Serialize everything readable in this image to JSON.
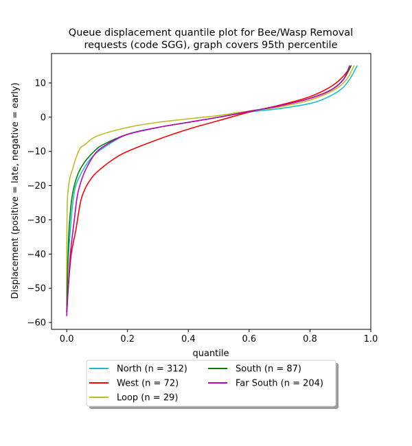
{
  "chart_data": {
    "type": "line",
    "title": "Queue displacement quantile plot for Bee/Wasp Removal\nrequests (code SGG), graph covers 95th percentile",
    "xlabel": "quantile",
    "ylabel": "Displacement (positive = late, negative = early)",
    "xlim": [
      -0.05,
      1.0
    ],
    "ylim": [
      -62,
      18.6
    ],
    "xticks": [
      0.0,
      0.2,
      0.4,
      0.6,
      0.8,
      1.0
    ],
    "xtick_labels": [
      "0.0",
      "0.2",
      "0.4",
      "0.6",
      "0.8",
      "1.0"
    ],
    "yticks": [
      -60,
      -50,
      -40,
      -30,
      -20,
      -10,
      0,
      10
    ],
    "ytick_labels": [
      "−60",
      "−50",
      "−40",
      "−30",
      "−20",
      "−10",
      "0",
      "10"
    ],
    "grid": false,
    "legend_position": "below plot, centered, two columns, with shadow",
    "series": [
      {
        "name": "North (n = 312)",
        "color": "#17becf",
        "points": [
          [
            0.0,
            -57
          ],
          [
            0.003,
            -45
          ],
          [
            0.01,
            -35
          ],
          [
            0.02,
            -25
          ],
          [
            0.03,
            -20
          ],
          [
            0.05,
            -16
          ],
          [
            0.08,
            -12
          ],
          [
            0.12,
            -9
          ],
          [
            0.2,
            -5
          ],
          [
            0.3,
            -3
          ],
          [
            0.4,
            -1.5
          ],
          [
            0.5,
            0
          ],
          [
            0.6,
            1.5
          ],
          [
            0.7,
            2.5
          ],
          [
            0.8,
            4
          ],
          [
            0.85,
            5.5
          ],
          [
            0.9,
            8
          ],
          [
            0.93,
            11
          ],
          [
            0.955,
            15
          ]
        ]
      },
      {
        "name": "West (n = 72)",
        "color": "#ff0000",
        "points": [
          [
            0.0,
            -57
          ],
          [
            0.005,
            -50
          ],
          [
            0.015,
            -40
          ],
          [
            0.03,
            -33
          ],
          [
            0.045,
            -25
          ],
          [
            0.06,
            -21
          ],
          [
            0.08,
            -18
          ],
          [
            0.1,
            -16
          ],
          [
            0.15,
            -12.5
          ],
          [
            0.2,
            -10
          ],
          [
            0.3,
            -6.5
          ],
          [
            0.4,
            -3.5
          ],
          [
            0.5,
            -1
          ],
          [
            0.6,
            1.5
          ],
          [
            0.7,
            3.5
          ],
          [
            0.8,
            6
          ],
          [
            0.87,
            9
          ],
          [
            0.91,
            12
          ],
          [
            0.935,
            15
          ]
        ]
      },
      {
        "name": "Loop (n = 29)",
        "color": "#bcbd22",
        "points": [
          [
            0.0,
            -55
          ],
          [
            0.0,
            -40
          ],
          [
            0.001,
            -30
          ],
          [
            0.003,
            -23
          ],
          [
            0.01,
            -18
          ],
          [
            0.02,
            -15
          ],
          [
            0.03,
            -12
          ],
          [
            0.045,
            -9
          ],
          [
            0.06,
            -8
          ],
          [
            0.1,
            -5.5
          ],
          [
            0.2,
            -3
          ],
          [
            0.3,
            -1.5
          ],
          [
            0.4,
            -0.5
          ],
          [
            0.5,
            0.5
          ],
          [
            0.6,
            1.8
          ],
          [
            0.7,
            3
          ],
          [
            0.8,
            5
          ],
          [
            0.88,
            8
          ],
          [
            0.92,
            11
          ],
          [
            0.945,
            15
          ]
        ]
      },
      {
        "name": "South (n = 87)",
        "color": "#008000",
        "points": [
          [
            0.0,
            -57
          ],
          [
            0.003,
            -45
          ],
          [
            0.007,
            -34
          ],
          [
            0.015,
            -25
          ],
          [
            0.025,
            -20
          ],
          [
            0.04,
            -16
          ],
          [
            0.06,
            -13
          ],
          [
            0.09,
            -10
          ],
          [
            0.12,
            -8
          ],
          [
            0.2,
            -5
          ],
          [
            0.3,
            -3
          ],
          [
            0.4,
            -1.5
          ],
          [
            0.5,
            0
          ],
          [
            0.6,
            1.7
          ],
          [
            0.7,
            3.3
          ],
          [
            0.8,
            5.5
          ],
          [
            0.87,
            8
          ],
          [
            0.91,
            11
          ],
          [
            0.935,
            15
          ]
        ]
      },
      {
        "name": "Far South (n = 204)",
        "color": "#bf00bf",
        "points": [
          [
            0.0,
            -58
          ],
          [
            0.005,
            -50
          ],
          [
            0.012,
            -40
          ],
          [
            0.025,
            -30
          ],
          [
            0.035,
            -23
          ],
          [
            0.05,
            -18
          ],
          [
            0.07,
            -14
          ],
          [
            0.1,
            -10
          ],
          [
            0.15,
            -7
          ],
          [
            0.2,
            -5
          ],
          [
            0.3,
            -3
          ],
          [
            0.4,
            -1.5
          ],
          [
            0.5,
            0
          ],
          [
            0.6,
            1.7
          ],
          [
            0.7,
            3.3
          ],
          [
            0.8,
            5.5
          ],
          [
            0.87,
            8
          ],
          [
            0.91,
            11
          ],
          [
            0.93,
            15
          ]
        ]
      }
    ]
  }
}
